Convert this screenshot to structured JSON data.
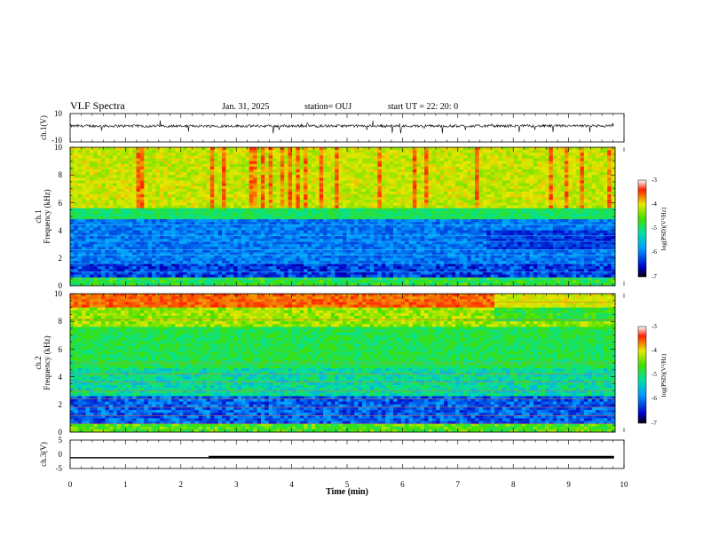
{
  "header": {
    "title": "VLF Spectra",
    "date": "Jan. 31, 2025",
    "station": "station= OUJ",
    "start": "start  UT  =   22: 20: 0"
  },
  "chart_data": [
    {
      "type": "line",
      "title": "",
      "ylabel": "ch.1(V)",
      "ylim": [
        -10,
        10
      ],
      "yticks": [
        "10",
        "-10"
      ],
      "xlim": [
        0,
        10
      ],
      "description_level": 4
    },
    {
      "type": "heatmap",
      "ylabel_line1": "ch.1",
      "ylabel_line2": "Frequency  (kHz)",
      "ylim": [
        0,
        10
      ],
      "yticks": [
        "0",
        "2",
        "4",
        "6",
        "8",
        "10"
      ],
      "xlim": [
        0,
        10
      ],
      "colorbar": {
        "label": "log(PSD)(V²/Hz)",
        "min": -7,
        "max": -3,
        "ticks": [
          "-3",
          "-4",
          "-5",
          "-6",
          "-7"
        ]
      }
    },
    {
      "type": "heatmap",
      "ylabel_line1": "ch.2",
      "ylabel_line2": "Frequency  (kHz)",
      "ylim": [
        0,
        10
      ],
      "yticks": [
        "0",
        "2",
        "4",
        "6",
        "8",
        "10"
      ],
      "xlim": [
        0,
        10
      ],
      "colorbar": {
        "label": "log(PSD)(V²/Hz)",
        "min": -7,
        "max": -3,
        "ticks": [
          "-3",
          "-4",
          "-5",
          "-6",
          "-7"
        ]
      }
    },
    {
      "type": "line",
      "ylabel": "ch.3(V)",
      "ylim": [
        -5,
        5
      ],
      "yticks": [
        "5",
        "0",
        "-5"
      ],
      "xlim": [
        0,
        10
      ],
      "xlabel": "Time  (min)",
      "xticks": [
        "0",
        "1",
        "2",
        "3",
        "4",
        "5",
        "6",
        "7",
        "8",
        "9",
        "10"
      ],
      "series": [
        {
          "x": [
            0,
            2.5,
            2.5,
            9.82
          ],
          "y": [
            -1.2,
            -1.2,
            -1.0,
            -1.0
          ]
        }
      ]
    }
  ]
}
